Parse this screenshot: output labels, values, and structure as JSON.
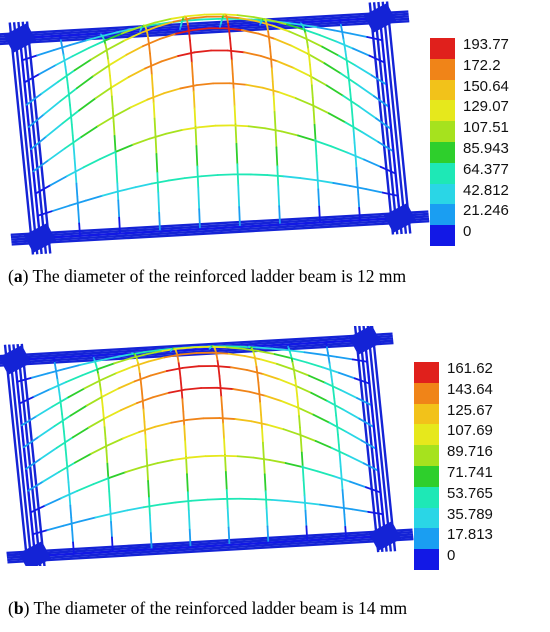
{
  "panels": [
    {
      "id": "a",
      "caption_letter": "a",
      "caption_text": "The diameter of the reinforced ladder beam is 12 mm",
      "legend_values": [
        "193.77",
        "172.2",
        "150.64",
        "129.07",
        "107.51",
        "85.943",
        "64.377",
        "42.812",
        "21.246",
        "0"
      ]
    },
    {
      "id": "b",
      "caption_letter": "b",
      "caption_text": "The diameter of the reinforced ladder beam is 14 mm",
      "legend_values": [
        "161.62",
        "143.64",
        "125.67",
        "107.69",
        "89.716",
        "71.741",
        "53.765",
        "35.789",
        "17.813",
        "0"
      ]
    }
  ],
  "legend_colors": [
    "#e0201c",
    "#f08418",
    "#f2c21a",
    "#e6e81c",
    "#a6e21e",
    "#2ecf2c",
    "#1ee8b6",
    "#2ad6e6",
    "#1a9ef2",
    "#1218e6"
  ],
  "support_color": "#1423d6"
}
